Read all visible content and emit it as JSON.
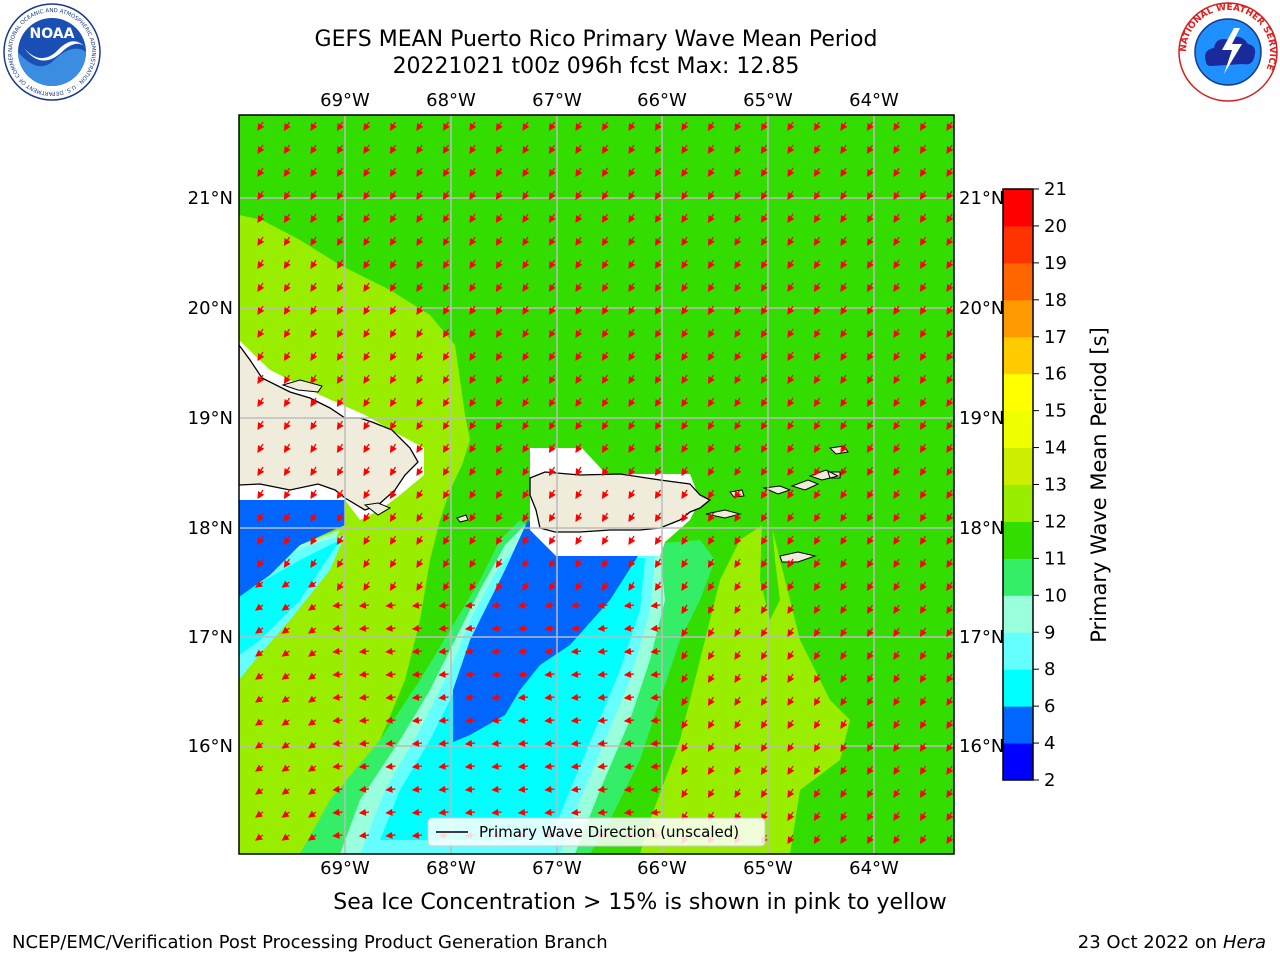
{
  "title": {
    "line1": "GEFS MEAN Puerto Rico Primary Wave Mean Period",
    "line2": "20221021 t00z 096h fcst   Max: 12.85"
  },
  "map": {
    "lon_labels": [
      "69°W",
      "68°W",
      "67°W",
      "66°W",
      "65°W",
      "64°W"
    ],
    "lat_labels": [
      "21°N",
      "20°N",
      "19°N",
      "18°N",
      "17°N",
      "16°N"
    ],
    "legend_label": "Primary Wave Direction (unscaled)",
    "background_color": "#33dd00",
    "arrow_color": "#ff0000"
  },
  "colorbar": {
    "label": "Primary Wave Mean Period [s]",
    "ticks": [
      "2",
      "4",
      "6",
      "8",
      "9",
      "10",
      "11",
      "12",
      "13",
      "14",
      "15",
      "16",
      "17",
      "18",
      "19",
      "20",
      "21"
    ],
    "colors": [
      "#0000ff",
      "#0066ff",
      "#00ffff",
      "#66ffff",
      "#99ffdd",
      "#33ee66",
      "#33dd00",
      "#99ee00",
      "#ccee00",
      "#eeff00",
      "#ffff00",
      "#ffcc00",
      "#ff9900",
      "#ff6600",
      "#ff3300",
      "#ff0000"
    ]
  },
  "caption": "Sea Ice Concentration > 15% is shown in pink to yellow",
  "footer": {
    "left": "NCEP/EMC/Verification Post Processing Product Generation Branch",
    "right_prefix": "23 Oct 2022 on ",
    "right_machine": "Hera"
  },
  "logos": {
    "noaa_text": "NOAA",
    "noaa_ring": "NATIONAL OCEANIC AND ATMOSPHERIC ADMINISTRATION · U.S. DEPARTMENT OF COMMERCE",
    "nws_ring": "NATIONAL WEATHER SERVICE"
  }
}
